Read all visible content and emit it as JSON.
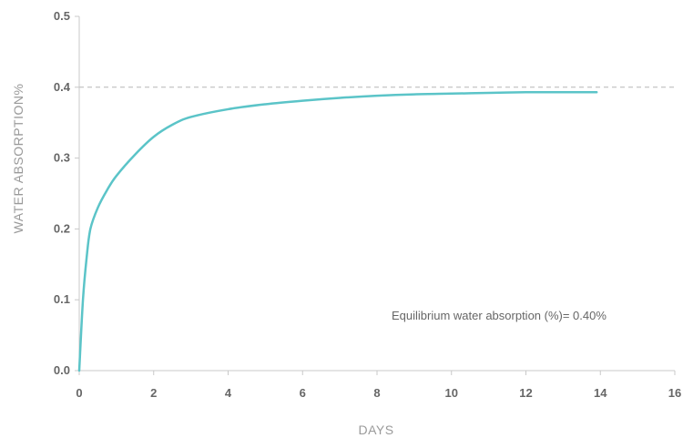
{
  "chart_data": {
    "type": "line",
    "xlabel": "DAYS",
    "ylabel": "WATER ABSORPTION%",
    "xlim": [
      0,
      16
    ],
    "ylim": [
      0,
      0.5
    ],
    "x_ticks": [
      "0",
      "2",
      "4",
      "6",
      "8",
      "10",
      "12",
      "14",
      "16"
    ],
    "y_ticks": [
      "0.0",
      "0.1",
      "0.2",
      "0.3",
      "0.4",
      "0.5"
    ],
    "grid": false,
    "reference_line": {
      "y": 0.4,
      "style": "dashed"
    },
    "annotation": "Equilibrium water absorption (%)= 0.40%",
    "series": [
      {
        "color": "#5bc4c8",
        "x": [
          0,
          0.1,
          0.2,
          0.3,
          0.5,
          0.75,
          1,
          1.5,
          2,
          2.5,
          3,
          4,
          5,
          6,
          7,
          8,
          9,
          10,
          11,
          12,
          13,
          13.9
        ],
        "y": [
          0,
          0.1,
          0.16,
          0.2,
          0.23,
          0.255,
          0.275,
          0.305,
          0.33,
          0.347,
          0.358,
          0.369,
          0.376,
          0.381,
          0.385,
          0.388,
          0.39,
          0.391,
          0.392,
          0.393,
          0.393,
          0.393
        ]
      }
    ]
  }
}
